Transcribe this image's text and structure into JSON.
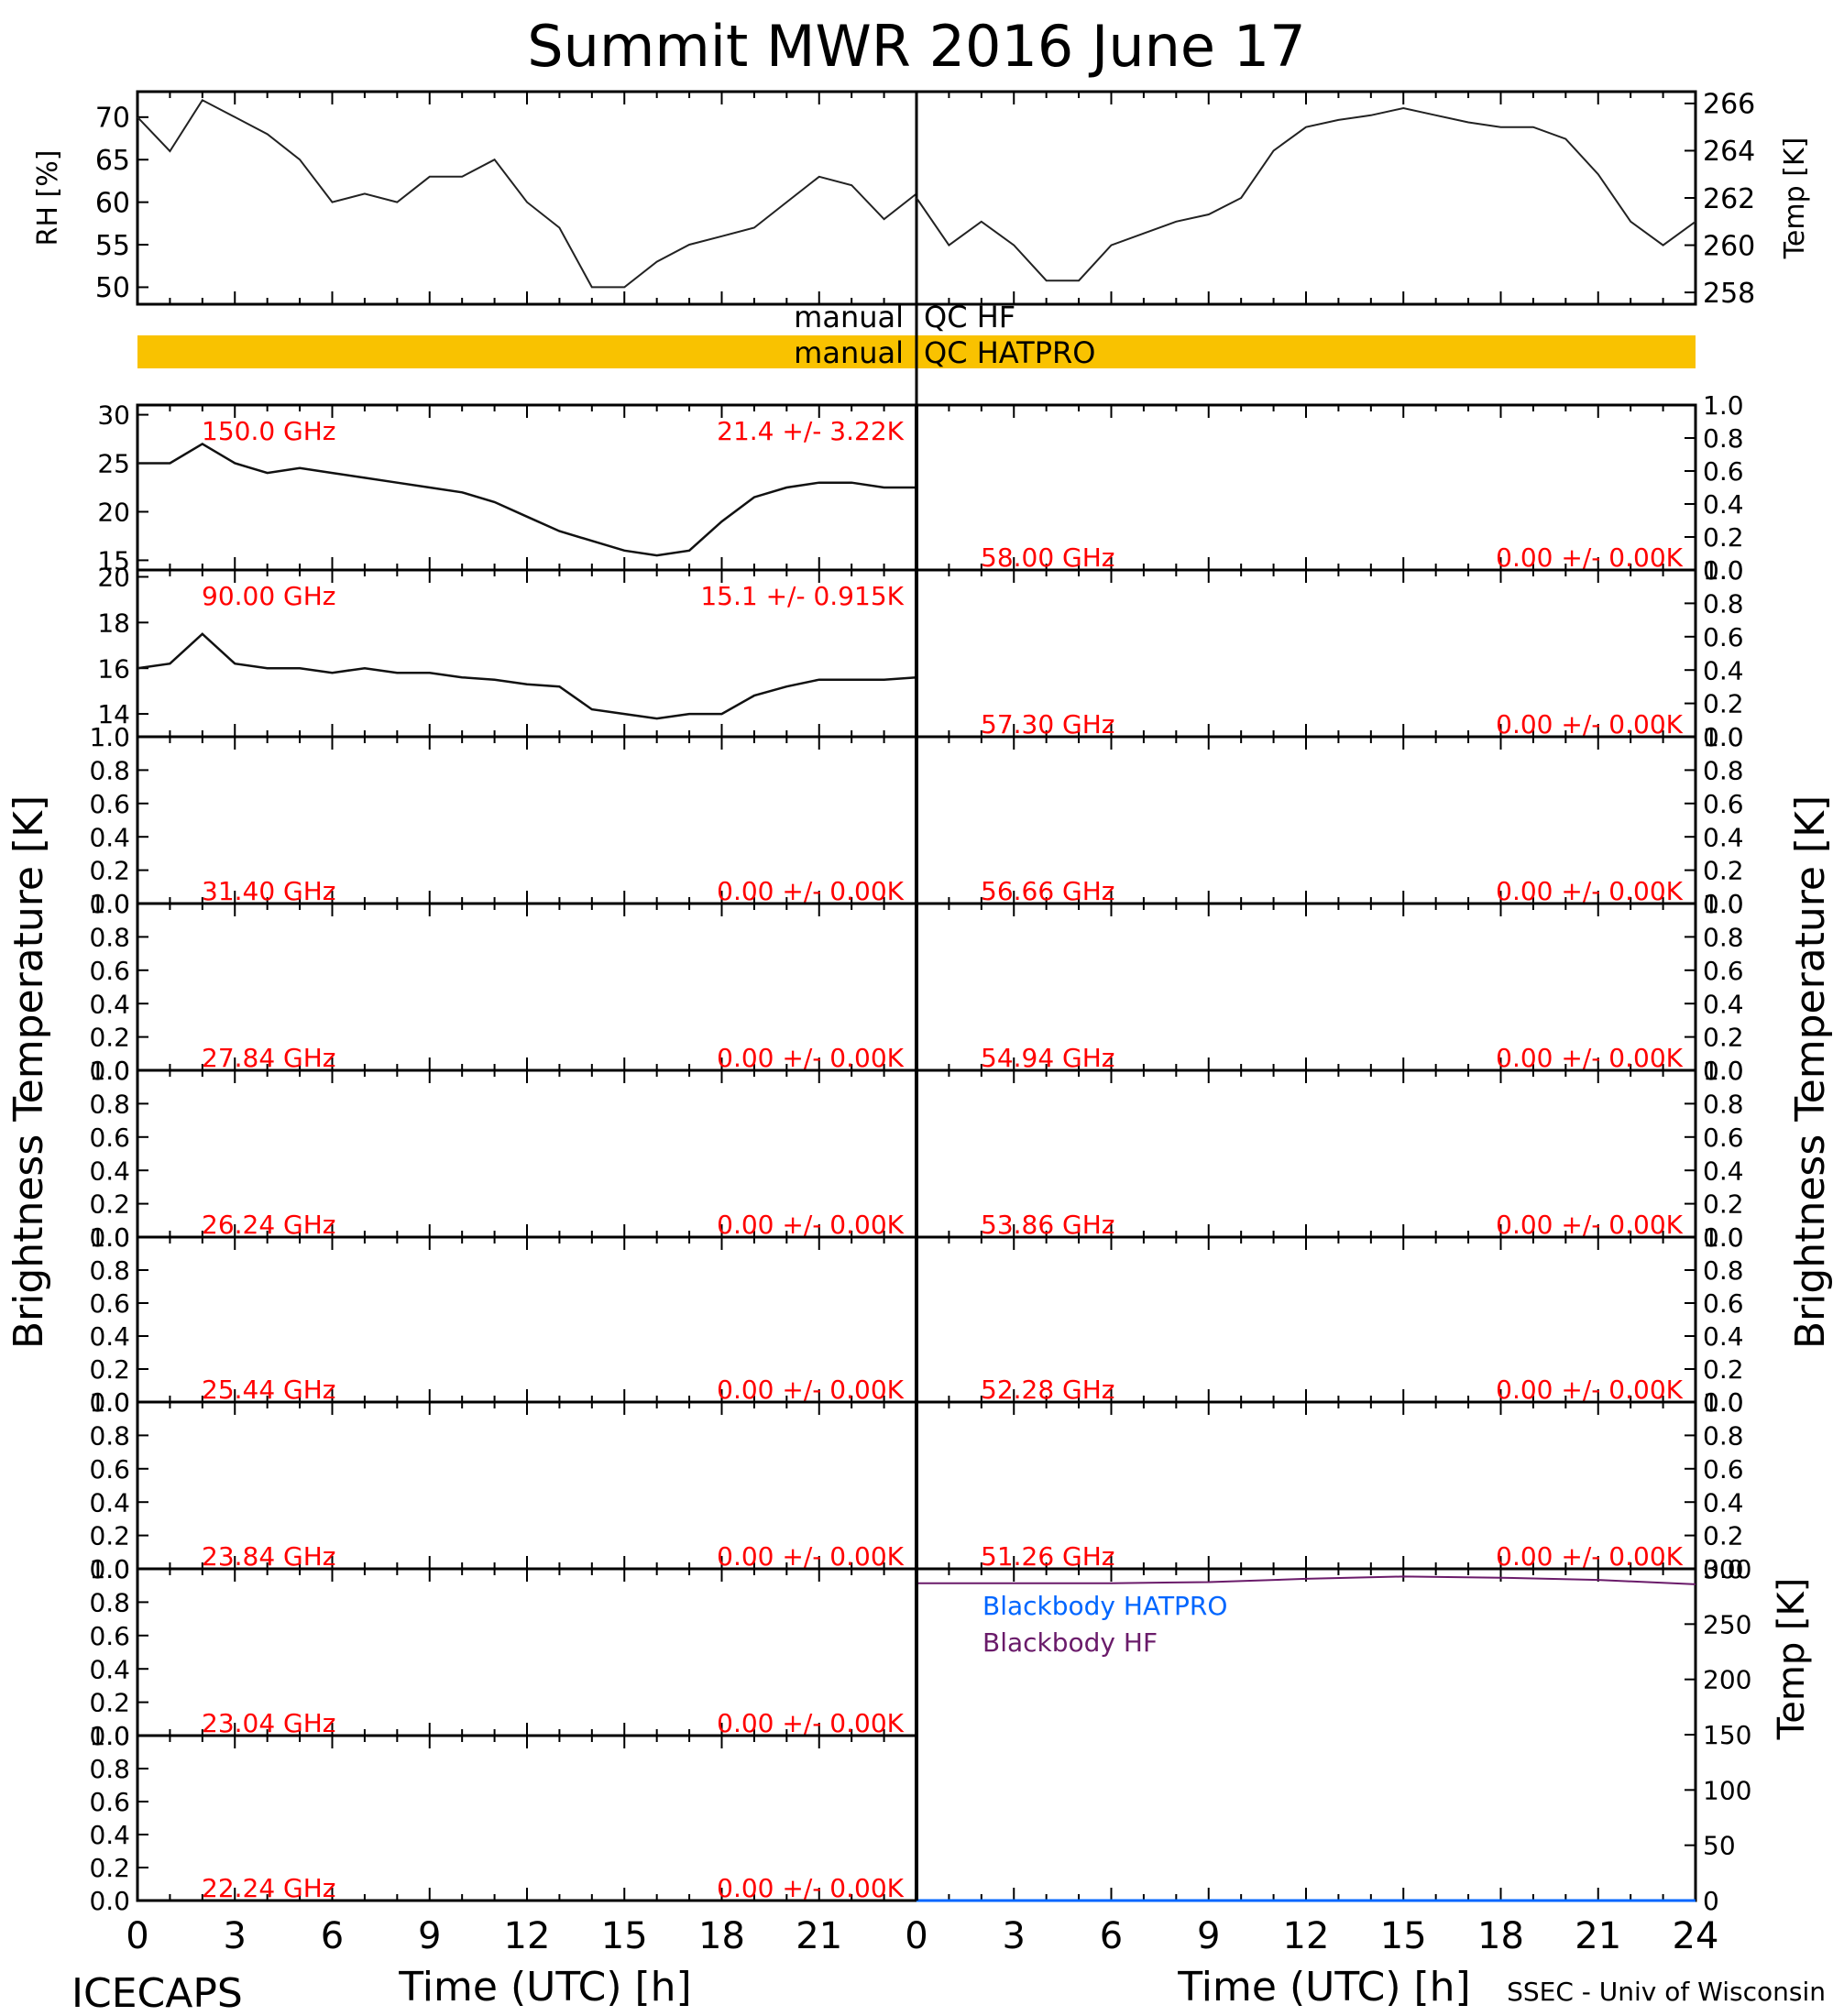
{
  "title": "Summit MWR 2016 June 17",
  "footer_left": "ICECAPS",
  "footer_right": "SSEC - Univ of Wisconsin",
  "x_label": "Time (UTC) [h]",
  "x_ticks": [
    "0",
    "3",
    "6",
    "9",
    "12",
    "15",
    "18",
    "21",
    "24"
  ],
  "y_label_main": "Brightness Temperature [K]",
  "qc": {
    "hf_label": "manual QC HF",
    "hatpro_label": "manual QC HATPRO",
    "hatpro_color": "#f9c200"
  },
  "colors": {
    "annotation": "#ff0000",
    "trace": "#000000",
    "hatpro_blackbody": "#0066ff",
    "hf_blackbody": "#6a1b6a"
  },
  "chart_data": [
    {
      "type": "line",
      "id": "rh",
      "ylabel": "RH [%]",
      "ylim": [
        48,
        73
      ],
      "yticks": [
        "50",
        "55",
        "60",
        "65",
        "70"
      ],
      "x": [
        0,
        1,
        2,
        3,
        4,
        5,
        6,
        7,
        8,
        9,
        10,
        11,
        12,
        13,
        14,
        15,
        16,
        17,
        18,
        19,
        20,
        21,
        22,
        23,
        24
      ],
      "values": [
        70,
        66,
        72,
        70,
        68,
        65,
        60,
        61,
        60,
        63,
        63,
        65,
        60,
        57,
        50,
        50,
        53,
        55,
        56,
        57,
        60,
        63,
        62,
        58,
        61
      ]
    },
    {
      "type": "line",
      "id": "air-temp",
      "ylabel": "Temp [K]",
      "ylim": [
        257.5,
        266.5
      ],
      "yticks": [
        "258",
        "260",
        "262",
        "264",
        "266"
      ],
      "x": [
        0,
        1,
        2,
        3,
        4,
        5,
        6,
        7,
        8,
        9,
        10,
        11,
        12,
        13,
        14,
        15,
        16,
        17,
        18,
        19,
        20,
        21,
        22,
        23,
        24
      ],
      "values": [
        262,
        260,
        261,
        260,
        258.5,
        258.5,
        260,
        260.5,
        261,
        261.3,
        262,
        264,
        265,
        265.3,
        265.5,
        265.8,
        265.5,
        265.2,
        265,
        265,
        264.5,
        263,
        261,
        260,
        261
      ]
    },
    {
      "type": "line",
      "id": "tb-150",
      "freq_label": "150.0 GHz",
      "stats_label": "21.4 +/-  3.22K",
      "ylim": [
        14,
        31
      ],
      "yticks": [
        "15",
        "20",
        "25",
        "30"
      ],
      "x": [
        0,
        1,
        2,
        3,
        4,
        5,
        6,
        7,
        8,
        9,
        10,
        11,
        12,
        13,
        14,
        15,
        16,
        17,
        18,
        19,
        20,
        21,
        22,
        23,
        24
      ],
      "values": [
        25,
        25,
        27,
        25,
        24,
        24.5,
        24,
        23.5,
        23,
        22.5,
        22,
        21,
        19.5,
        18,
        17,
        16,
        15.5,
        16,
        19,
        21.5,
        22.5,
        23,
        23,
        22.5,
        22.5
      ]
    },
    {
      "type": "line",
      "id": "tb-90",
      "freq_label": "90.00 GHz",
      "stats_label": "15.1 +/- 0.915K",
      "ylim": [
        13,
        20.3
      ],
      "yticks": [
        "14",
        "16",
        "18",
        "20"
      ],
      "x": [
        0,
        1,
        2,
        3,
        4,
        5,
        6,
        7,
        8,
        9,
        10,
        11,
        12,
        13,
        14,
        15,
        16,
        17,
        18,
        19,
        20,
        21,
        22,
        23,
        24
      ],
      "values": [
        16,
        16.2,
        17.5,
        16.2,
        16,
        16,
        15.8,
        16,
        15.8,
        15.8,
        15.6,
        15.5,
        15.3,
        15.2,
        14.2,
        14,
        13.8,
        14,
        14,
        14.8,
        15.2,
        15.5,
        15.5,
        15.5,
        15.6
      ]
    },
    {
      "type": "line",
      "id": "tb-31.40",
      "freq_label": "31.40 GHz",
      "stats_label": "0.00 +/-  0.00K",
      "ylim": [
        0,
        1
      ],
      "values": []
    },
    {
      "type": "line",
      "id": "tb-27.84",
      "freq_label": "27.84 GHz",
      "stats_label": "0.00 +/-  0.00K",
      "ylim": [
        0,
        1
      ],
      "values": []
    },
    {
      "type": "line",
      "id": "tb-26.24",
      "freq_label": "26.24 GHz",
      "stats_label": "0.00 +/-  0.00K",
      "ylim": [
        0,
        1
      ],
      "values": []
    },
    {
      "type": "line",
      "id": "tb-25.44",
      "freq_label": "25.44 GHz",
      "stats_label": "0.00 +/-  0.00K",
      "ylim": [
        0,
        1
      ],
      "values": []
    },
    {
      "type": "line",
      "id": "tb-23.84",
      "freq_label": "23.84 GHz",
      "stats_label": "0.00 +/-  0.00K",
      "ylim": [
        0,
        1
      ],
      "values": []
    },
    {
      "type": "line",
      "id": "tb-23.04",
      "freq_label": "23.04 GHz",
      "stats_label": "0.00 +/-  0.00K",
      "ylim": [
        0,
        1
      ],
      "values": []
    },
    {
      "type": "line",
      "id": "tb-22.24",
      "freq_label": "22.24 GHz",
      "stats_label": "0.00 +/-  0.00K",
      "ylim": [
        0,
        1
      ],
      "values": []
    },
    {
      "type": "line",
      "id": "tb-58.00",
      "freq_label": "58.00 GHz",
      "stats_label": "0.00 +/-  0.00K",
      "ylim": [
        0,
        1
      ],
      "values": []
    },
    {
      "type": "line",
      "id": "tb-57.30",
      "freq_label": "57.30 GHz",
      "stats_label": "0.00 +/-  0.00K",
      "ylim": [
        0,
        1
      ],
      "values": []
    },
    {
      "type": "line",
      "id": "tb-56.66",
      "freq_label": "56.66 GHz",
      "stats_label": "0.00 +/-  0.00K",
      "ylim": [
        0,
        1
      ],
      "values": []
    },
    {
      "type": "line",
      "id": "tb-54.94",
      "freq_label": "54.94 GHz",
      "stats_label": "0.00 +/-  0.00K",
      "ylim": [
        0,
        1
      ],
      "values": []
    },
    {
      "type": "line",
      "id": "tb-53.86",
      "freq_label": "53.86 GHz",
      "stats_label": "0.00 +/-  0.00K",
      "ylim": [
        0,
        1
      ],
      "values": []
    },
    {
      "type": "line",
      "id": "tb-52.28",
      "freq_label": "52.28 GHz",
      "stats_label": "0.00 +/-  0.00K",
      "ylim": [
        0,
        1
      ],
      "values": []
    },
    {
      "type": "line",
      "id": "tb-51.26",
      "freq_label": "51.26 GHz",
      "stats_label": "0.00 +/-  0.00K",
      "ylim": [
        0,
        1
      ],
      "values": []
    },
    {
      "type": "line",
      "id": "blackbody",
      "ylabel": "Temp [K]",
      "ylim": [
        0,
        300
      ],
      "yticks": [
        "0",
        "50",
        "100",
        "150",
        "200",
        "250",
        "300"
      ],
      "x": [
        0,
        3,
        6,
        9,
        12,
        15,
        18,
        21,
        24
      ],
      "series": [
        {
          "name": "Blackbody HATPRO",
          "values": [
            0,
            0,
            0,
            0,
            0,
            0,
            0,
            0,
            0
          ]
        },
        {
          "name": "Blackbody HF",
          "values": [
            287,
            287,
            287,
            288,
            291,
            293,
            292,
            290,
            286
          ]
        }
      ]
    }
  ]
}
